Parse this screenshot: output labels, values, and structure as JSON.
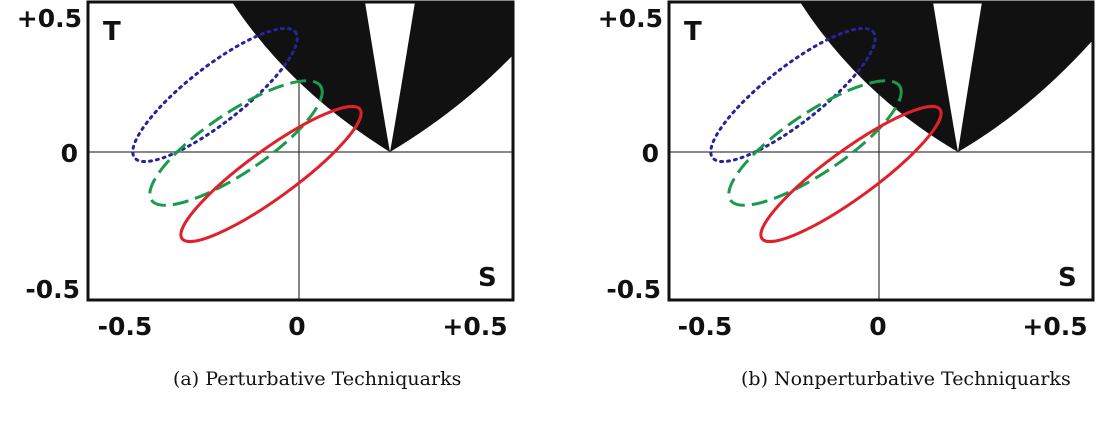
{
  "panels": [
    {
      "caption": "(a) Perturbative Techniquarks",
      "x_axis_letter": "S",
      "y_axis_letter": "T",
      "x_ticks": [
        "-0.5",
        "0",
        "+0.5"
      ],
      "y_ticks": [
        "+0.5",
        "0",
        "-0.5"
      ]
    },
    {
      "caption": "(b) Nonperturbative Techniquarks",
      "x_axis_letter": "S",
      "y_axis_letter": "T",
      "x_ticks": [
        "-0.5",
        "0",
        "+0.5"
      ],
      "y_ticks": [
        "+0.5",
        "0",
        "-0.5"
      ]
    }
  ],
  "colors": {
    "excluded_region": "#111111",
    "ellipse_solid": "#e0202a",
    "ellipse_dashed": "#1a9a4a",
    "ellipse_dotted": "#26249a"
  },
  "chart_data": [
    {
      "type": "scatter",
      "xlim": [
        -0.5,
        0.5
      ],
      "ylim": [
        -0.5,
        0.5
      ],
      "grid": false,
      "ellipses": [
        {
          "style": "solid",
          "center": [
            -0.05,
            -0.05
          ],
          "semi_major": 0.265,
          "semi_minor": 0.06,
          "angle_deg": 36
        },
        {
          "style": "dashed",
          "center": [
            -0.2,
            0.03
          ],
          "semi_major": 0.245,
          "semi_minor": 0.075,
          "angle_deg": 34
        },
        {
          "style": "dotted",
          "center": [
            -0.25,
            0.2
          ],
          "semi_major": 0.24,
          "semi_minor": 0.075,
          "angle_deg": 38
        }
      ],
      "excluded_region_vertex": [
        0.26,
        0.0
      ]
    },
    {
      "type": "scatter",
      "xlim": [
        -0.5,
        0.5
      ],
      "ylim": [
        -0.5,
        0.5
      ],
      "grid": false,
      "ellipses": [
        {
          "style": "solid",
          "center": [
            -0.05,
            -0.05
          ],
          "semi_major": 0.265,
          "semi_minor": 0.06,
          "angle_deg": 36
        },
        {
          "style": "dashed",
          "center": [
            -0.2,
            0.03
          ],
          "semi_major": 0.245,
          "semi_minor": 0.075,
          "angle_deg": 34
        },
        {
          "style": "dotted",
          "center": [
            -0.25,
            0.2
          ],
          "semi_major": 0.24,
          "semi_minor": 0.075,
          "angle_deg": 38
        }
      ],
      "excluded_region_vertex": [
        0.22,
        0.0
      ]
    }
  ]
}
